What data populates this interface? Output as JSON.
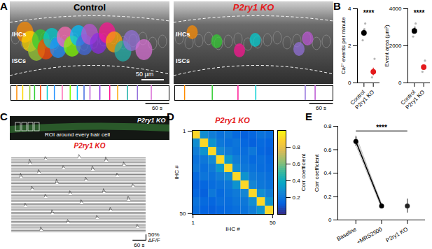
{
  "figure": {
    "panel_labels": [
      "A",
      "B",
      "C",
      "D",
      "E"
    ],
    "A": {
      "xlim": [
        0,
        400
      ],
      "images": [
        {
          "title": "Control",
          "labels": [
            "IHCs",
            "ISCs"
          ],
          "scale_bar": "50 µm",
          "raster_scale": {
            "value": 60,
            "label": "60 s"
          },
          "events": [
            15,
            30,
            48,
            60,
            75,
            92,
            110,
            130,
            150,
            168,
            185,
            200,
            225,
            250,
            270,
            295,
            320,
            355
          ],
          "colors": [
            "#ff8c00",
            "#ffd700",
            "#9acd32",
            "#32cd32",
            "#ff4500",
            "#00ced1",
            "#1e90ff",
            "#ff69b4",
            "#7fff00",
            "#00bfff",
            "#4169e1",
            "#ba55d3",
            "#8a2be2",
            "#ff1493",
            "#ffa500",
            "#20b2aa",
            "#9370db",
            "#da70d6"
          ]
        },
        {
          "title": "P2ry1 KO",
          "labels": [
            "IHCs",
            "ISCs"
          ],
          "raster_scale": {
            "value": 60,
            "label": "60 s"
          },
          "events": [
            25,
            95,
            160,
            205,
            330,
            355
          ],
          "colors": [
            "#ff8c00",
            "#32cd32",
            "#ff1493",
            "#00ced1",
            "#9370db",
            "#ba55d3"
          ]
        }
      ]
    },
    "C": {
      "image_title": "P2ry1 KO",
      "image_note": "ROI around every hair cell",
      "title": "P2ry1 KO",
      "xlim": [
        0,
        600
      ],
      "trace_count": 50,
      "events": [
        {
          "trace": 1,
          "time": 300,
          "amplitude": 30
        },
        {
          "trace": 2,
          "time": 150,
          "amplitude": 25
        },
        {
          "trace": 3,
          "time": 420,
          "amplitude": 35
        },
        {
          "trace": 5,
          "time": 80,
          "amplitude": 40
        },
        {
          "trace": 6,
          "time": 500,
          "amplitude": 30
        },
        {
          "trace": 8,
          "time": 230,
          "amplitude": 25
        },
        {
          "trace": 9,
          "time": 360,
          "amplitude": 35
        },
        {
          "trace": 11,
          "time": 120,
          "amplitude": 30
        },
        {
          "trace": 13,
          "time": 470,
          "amplitude": 25
        },
        {
          "trace": 14,
          "time": 40,
          "amplitude": 35
        },
        {
          "trace": 16,
          "time": 330,
          "amplitude": 30
        },
        {
          "trace": 18,
          "time": 200,
          "amplitude": 40
        },
        {
          "trace": 20,
          "time": 540,
          "amplitude": 25
        },
        {
          "trace": 22,
          "time": 90,
          "amplitude": 30
        },
        {
          "trace": 24,
          "time": 410,
          "amplitude": 35
        },
        {
          "trace": 25,
          "time": 260,
          "amplitude": 30
        },
        {
          "trace": 27,
          "time": 150,
          "amplitude": 25
        },
        {
          "trace": 29,
          "time": 520,
          "amplitude": 35
        },
        {
          "trace": 31,
          "time": 310,
          "amplitude": 30
        },
        {
          "trace": 33,
          "time": 60,
          "amplitude": 25
        },
        {
          "trace": 36,
          "time": 440,
          "amplitude": 30
        },
        {
          "trace": 38,
          "time": 180,
          "amplitude": 35
        },
        {
          "trace": 41,
          "time": 380,
          "amplitude": 25
        },
        {
          "trace": 44,
          "time": 250,
          "amplitude": 30
        },
        {
          "trace": 47,
          "time": 560,
          "amplitude": 25
        },
        {
          "trace": 49,
          "time": 130,
          "amplitude": 30
        }
      ],
      "scale_x": {
        "value": 60,
        "label": "60 s"
      },
      "scale_y": {
        "value": 50,
        "label_lines": [
          "50%",
          "ΔF/F"
        ]
      }
    }
  },
  "chart_data": [
    {
      "type": "scatter",
      "categories": [
        "Control",
        "P2ry1 KO"
      ],
      "ylabel": "Ca²⁺ events per minute",
      "ylim": [
        0,
        4
      ],
      "yticks": [
        0,
        2,
        4
      ],
      "values": [
        2.7,
        0.6
      ],
      "errors": [
        0.15,
        0.2
      ],
      "colors": [
        "#000000",
        "#e41a1c"
      ],
      "points": [
        [
          2.3,
          2.6,
          2.9,
          3.2
        ],
        [
          0.3,
          0.5,
          0.7,
          1.3
        ]
      ],
      "annotation": {
        "text": "****",
        "y": 3.75
      }
    },
    {
      "type": "scatter",
      "categories": [
        "Control",
        "P2ry1 KO"
      ],
      "ylabel": "Event area (µm²)",
      "ylim": [
        0,
        4000
      ],
      "yticks": [
        0,
        2000,
        4000
      ],
      "values": [
        2800,
        850
      ],
      "errors": [
        150,
        120
      ],
      "colors": [
        "#000000",
        "#e41a1c"
      ],
      "points": [
        [
          2500,
          2700,
          3000,
          3200
        ],
        [
          600,
          800,
          900,
          1200
        ]
      ],
      "annotation": {
        "text": "****",
        "y": 3750
      }
    },
    {
      "type": "heatmap",
      "title": "P2ry1 KO",
      "xlabel": "IHC #",
      "ylabel": "IHC #",
      "bins": [
        0.5,
        5.5,
        10.5,
        15.5,
        20.5,
        25.5,
        30.5,
        35.5,
        40.5,
        45.5,
        50.5
      ],
      "xlim": [
        0.5,
        50.5
      ],
      "ylim": [
        0.5,
        50.5
      ],
      "xticks": [
        1,
        50
      ],
      "yticks": [
        1,
        50
      ],
      "cells": [
        [
          0.9,
          0.28,
          0.22,
          0.18,
          0.2,
          0.15,
          0.12,
          0.14,
          0.18,
          0.16
        ],
        [
          0.28,
          0.9,
          0.3,
          0.2,
          0.17,
          0.19,
          0.14,
          0.12,
          0.15,
          0.13
        ],
        [
          0.22,
          0.3,
          0.9,
          0.26,
          0.21,
          0.18,
          0.16,
          0.2,
          0.14,
          0.12
        ],
        [
          0.18,
          0.2,
          0.26,
          0.9,
          0.32,
          0.22,
          0.18,
          0.15,
          0.17,
          0.14
        ],
        [
          0.2,
          0.17,
          0.21,
          0.32,
          0.9,
          0.27,
          0.2,
          0.18,
          0.16,
          0.15
        ],
        [
          0.15,
          0.19,
          0.18,
          0.22,
          0.27,
          0.9,
          0.3,
          0.21,
          0.19,
          0.17
        ],
        [
          0.12,
          0.14,
          0.16,
          0.18,
          0.2,
          0.3,
          0.9,
          0.25,
          0.2,
          0.18
        ],
        [
          0.14,
          0.12,
          0.2,
          0.15,
          0.18,
          0.21,
          0.25,
          0.9,
          0.28,
          0.22
        ],
        [
          0.18,
          0.15,
          0.14,
          0.17,
          0.16,
          0.19,
          0.2,
          0.28,
          0.9,
          0.3
        ],
        [
          0.16,
          0.13,
          0.12,
          0.14,
          0.15,
          0.17,
          0.18,
          0.22,
          0.3,
          0.9
        ]
      ],
      "colorbar": {
        "label": "Corr coefficient",
        "range": [
          0,
          1
        ],
        "ticks": [
          0.2,
          0.4,
          0.6,
          0.8
        ]
      }
    },
    {
      "type": "line",
      "categories": [
        "Baseline",
        "+MRS2500",
        "P2ry1 KO"
      ],
      "ylabel": "Corr coefficient",
      "ylim": [
        0,
        0.8
      ],
      "yticks": [
        0,
        0.2,
        0.4,
        0.6,
        0.8
      ],
      "series": [
        {
          "color": "#bbbbbb",
          "values": [
            0.72,
            0.13,
            null
          ]
        },
        {
          "color": "#bbbbbb",
          "values": [
            0.64,
            0.1,
            null
          ]
        },
        {
          "color": "#bbbbbb",
          "values": [
            0.69,
            0.14,
            null
          ]
        },
        {
          "color": "#000000",
          "values": [
            0.67,
            0.12,
            null
          ],
          "errors": [
            0.04,
            0.02,
            null
          ],
          "marker": "circle"
        },
        {
          "color": "#222222",
          "values": [
            null,
            null,
            0.12
          ],
          "errors": [
            null,
            null,
            0.06
          ],
          "marker": "circle"
        }
      ],
      "annotation": {
        "text": "****",
        "from": "Baseline",
        "to": "P2ry1 KO",
        "y": 0.76
      }
    }
  ]
}
